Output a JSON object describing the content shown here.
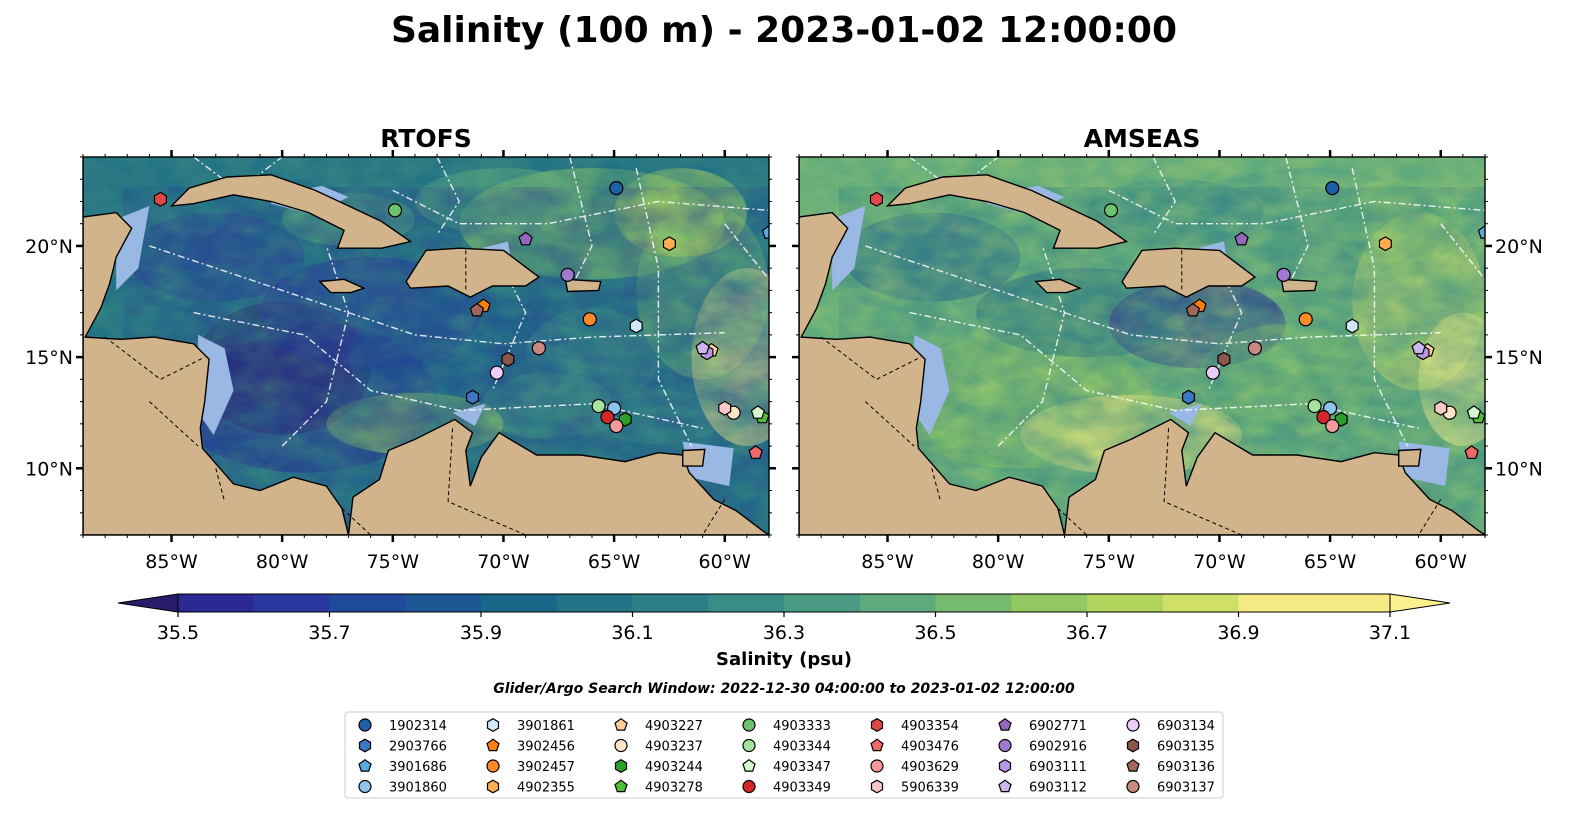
{
  "title": "Salinity (100 m) - 2023-01-02 12:00:00",
  "panels": [
    {
      "title": "RTOFS",
      "model": "rtofs"
    },
    {
      "title": "AMSEAS",
      "model": "amseas"
    }
  ],
  "chart_data": {
    "type": "heatmap",
    "title": "Salinity (100 m) - 2023-01-02 12:00:00",
    "colorbar": {
      "label": "Salinity (psu)",
      "min": 35.5,
      "max": 37.1,
      "step": 0.1,
      "ticks": [
        35.5,
        35.7,
        35.9,
        36.1,
        36.3,
        36.5,
        36.7,
        36.9,
        37.1
      ],
      "tick_labels": [
        "35.5",
        "35.7",
        "35.9",
        "36.1",
        "36.3",
        "36.5",
        "36.7",
        "36.9",
        "37.1"
      ],
      "extend": "both",
      "colors": [
        "#2a1a6b",
        "#2b2a95",
        "#28389f",
        "#1f4a9c",
        "#1b5893",
        "#1a6689",
        "#237285",
        "#2d7e86",
        "#3a8c87",
        "#4b9a84",
        "#5eaa7c",
        "#75ba6f",
        "#92c861",
        "#b0d45c",
        "#d0df66",
        "#f6ea84",
        "#fbf18f"
      ]
    },
    "xaxis": {
      "ticks": [
        -85,
        -80,
        -75,
        -70,
        -65,
        -60
      ],
      "tick_labels": [
        "85°W",
        "80°W",
        "75°W",
        "70°W",
        "65°W",
        "60°W"
      ],
      "range": [
        -89,
        -58
      ]
    },
    "yaxis": {
      "ticks": [
        10,
        15,
        20
      ],
      "tick_labels": [
        "10°N",
        "15°N",
        "20°N"
      ],
      "range": [
        7,
        24
      ]
    },
    "search_window": "Glider/Argo Search Window: 2022-12-30 04:00:00 to 2023-01-02 12:00:00",
    "platforms": [
      {
        "id": "1902314",
        "marker": "circle",
        "color": "#1f5fa6",
        "lon": -64.9,
        "lat": 22.6
      },
      {
        "id": "2903766",
        "marker": "hexagon",
        "color": "#3a78c2",
        "lon": -71.4,
        "lat": 13.2
      },
      {
        "id": "3901686",
        "marker": "pentagon",
        "color": "#5aa8e0",
        "lon": -58.0,
        "lat": 20.6
      },
      {
        "id": "3901860",
        "marker": "circle",
        "color": "#8dc4ee",
        "lon": -65.0,
        "lat": 12.7
      },
      {
        "id": "3901861",
        "marker": "hexagon",
        "color": "#cfe8f8",
        "lon": -64.0,
        "lat": 16.4
      },
      {
        "id": "3902456",
        "marker": "pentagon",
        "color": "#ff7f0e",
        "lon": -70.9,
        "lat": 17.3
      },
      {
        "id": "3902457",
        "marker": "circle",
        "color": "#ff8a2a",
        "lon": -66.1,
        "lat": 16.7
      },
      {
        "id": "4902355",
        "marker": "hexagon",
        "color": "#ffad52",
        "lon": -62.5,
        "lat": 20.1
      },
      {
        "id": "4903227",
        "marker": "pentagon",
        "color": "#ffcf9a",
        "lon": -60.6,
        "lat": 15.3
      },
      {
        "id": "4903237",
        "marker": "circle",
        "color": "#ffe3c7",
        "lon": -59.6,
        "lat": 12.5
      },
      {
        "id": "4903244",
        "marker": "hexagon",
        "color": "#2ca02c",
        "lon": -64.5,
        "lat": 12.2
      },
      {
        "id": "4903278",
        "marker": "pentagon",
        "color": "#4fbf3a",
        "lon": -58.3,
        "lat": 12.3
      },
      {
        "id": "4903333",
        "marker": "circle",
        "color": "#6dc36d",
        "lon": -74.9,
        "lat": 21.6
      },
      {
        "id": "4903344",
        "marker": "circle",
        "color": "#a6e3a0",
        "lon": -65.7,
        "lat": 12.8
      },
      {
        "id": "4903347",
        "marker": "pentagon",
        "color": "#d7f7cf",
        "lon": -58.5,
        "lat": 12.5
      },
      {
        "id": "4903349",
        "marker": "circle",
        "color": "#d62728",
        "lon": -65.3,
        "lat": 12.3
      },
      {
        "id": "4903354",
        "marker": "hexagon",
        "color": "#e04848",
        "lon": -85.5,
        "lat": 22.1
      },
      {
        "id": "4903476",
        "marker": "pentagon",
        "color": "#f06a6a",
        "lon": -58.6,
        "lat": 10.7
      },
      {
        "id": "4903629",
        "marker": "circle",
        "color": "#f49a9a",
        "lon": -64.9,
        "lat": 11.9
      },
      {
        "id": "5906339",
        "marker": "hexagon",
        "color": "#f8c8c8",
        "lon": -60.0,
        "lat": 12.7
      },
      {
        "id": "6902771",
        "marker": "pentagon",
        "color": "#9467bd",
        "lon": -69.0,
        "lat": 20.3
      },
      {
        "id": "6902916",
        "marker": "circle",
        "color": "#a07ad0",
        "lon": -67.1,
        "lat": 18.7
      },
      {
        "id": "6903111",
        "marker": "hexagon",
        "color": "#b996e6",
        "lon": -60.8,
        "lat": 15.2
      },
      {
        "id": "6903112",
        "marker": "pentagon",
        "color": "#cbb6ef",
        "lon": -61.0,
        "lat": 15.4
      },
      {
        "id": "6903134",
        "marker": "circle",
        "color": "#eccdf7",
        "lon": -70.3,
        "lat": 14.3
      },
      {
        "id": "6903135",
        "marker": "hexagon",
        "color": "#8c564b",
        "lon": -69.8,
        "lat": 14.9
      },
      {
        "id": "6903136",
        "marker": "pentagon",
        "color": "#a0675a",
        "lon": -71.2,
        "lat": 17.1
      },
      {
        "id": "6903137",
        "marker": "circle",
        "color": "#c88a80",
        "lon": -68.4,
        "lat": 15.4
      }
    ]
  },
  "colors": {
    "land": "#d2b48c",
    "shelf": "#9ab8e4",
    "coast": "#000000",
    "tracks": "#ffffff"
  }
}
